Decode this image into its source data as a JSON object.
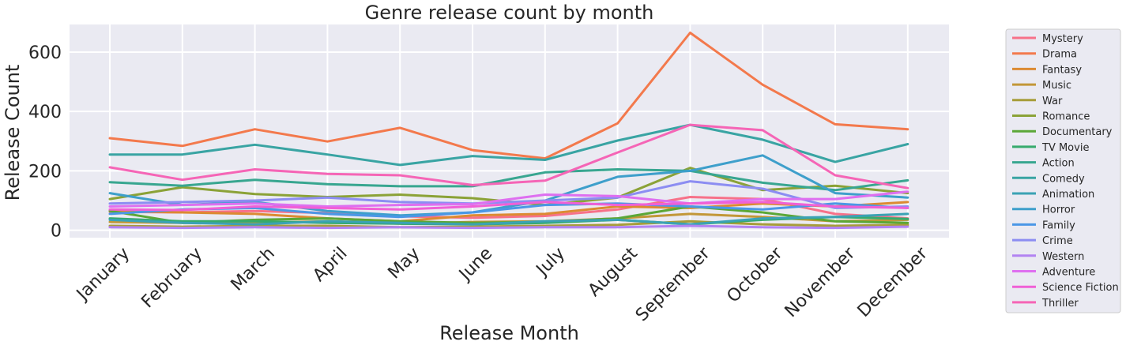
{
  "chart_data": {
    "type": "line",
    "title": "Genre release count by month",
    "xlabel": "Release Month",
    "ylabel": "Release Count",
    "categories": [
      "January",
      "February",
      "March",
      "April",
      "May",
      "June",
      "July",
      "August",
      "September",
      "October",
      "November",
      "December"
    ],
    "yticks": [
      0,
      200,
      400,
      600
    ],
    "ylim": [
      -25,
      693
    ],
    "grid": true,
    "legend_position": "right",
    "series": [
      {
        "name": "Mystery",
        "color": "#f77189",
        "values": [
          62,
          60,
          65,
          58,
          47,
          42,
          48,
          70,
          112,
          105,
          55,
          40
        ]
      },
      {
        "name": "Drama",
        "color": "#f3794c",
        "values": [
          310,
          284,
          340,
          299,
          345,
          270,
          242,
          360,
          665,
          490,
          357,
          340
        ]
      },
      {
        "name": "Fantasy",
        "color": "#dc8a32",
        "values": [
          65,
          60,
          55,
          40,
          30,
          50,
          55,
          80,
          75,
          90,
          80,
          95
        ]
      },
      {
        "name": "Music",
        "color": "#c29738",
        "values": [
          28,
          25,
          25,
          30,
          22,
          28,
          30,
          40,
          55,
          45,
          30,
          35
        ]
      },
      {
        "name": "War",
        "color": "#a79d3a",
        "values": [
          15,
          12,
          15,
          15,
          10,
          12,
          15,
          18,
          30,
          20,
          15,
          18
        ]
      },
      {
        "name": "Romance",
        "color": "#8ba237",
        "values": [
          105,
          145,
          122,
          112,
          120,
          108,
          85,
          110,
          210,
          135,
          150,
          125
        ]
      },
      {
        "name": "Documentary",
        "color": "#5ba737",
        "values": [
          65,
          25,
          35,
          40,
          30,
          25,
          28,
          40,
          80,
          60,
          30,
          25
        ]
      },
      {
        "name": "TV Movie",
        "color": "#36aa6d",
        "values": [
          40,
          30,
          30,
          25,
          22,
          20,
          25,
          35,
          20,
          35,
          45,
          38
        ]
      },
      {
        "name": "Action",
        "color": "#38a690",
        "values": [
          162,
          150,
          170,
          155,
          148,
          148,
          195,
          205,
          200,
          160,
          135,
          168
        ]
      },
      {
        "name": "Comedy",
        "color": "#39a4a3",
        "values": [
          255,
          255,
          288,
          255,
          220,
          250,
          237,
          302,
          355,
          305,
          230,
          290
        ]
      },
      {
        "name": "Animation",
        "color": "#3ba2b4",
        "values": [
          35,
          25,
          20,
          30,
          25,
          20,
          30,
          35,
          20,
          40,
          45,
          55
        ]
      },
      {
        "name": "Horror",
        "color": "#3e9fcb",
        "values": [
          125,
          85,
          95,
          65,
          50,
          60,
          100,
          180,
          200,
          252,
          125,
          110
        ]
      },
      {
        "name": "Family",
        "color": "#4b97e6",
        "values": [
          55,
          70,
          75,
          55,
          45,
          60,
          85,
          90,
          80,
          70,
          90,
          75
        ]
      },
      {
        "name": "Crime",
        "color": "#8c8df2",
        "values": [
          90,
          95,
          100,
          110,
          95,
          90,
          100,
          110,
          165,
          140,
          75,
          80
        ]
      },
      {
        "name": "Western",
        "color": "#b283f2",
        "values": [
          10,
          8,
          10,
          8,
          10,
          8,
          10,
          10,
          15,
          10,
          8,
          12
        ]
      },
      {
        "name": "Adventure",
        "color": "#de6ff0",
        "values": [
          80,
          85,
          90,
          80,
          85,
          88,
          120,
          115,
          90,
          105,
          105,
          130
        ]
      },
      {
        "name": "Science Fiction",
        "color": "#f060d6",
        "values": [
          70,
          68,
          80,
          75,
          70,
          80,
          95,
          85,
          90,
          95,
          80,
          75
        ]
      },
      {
        "name": "Thriller",
        "color": "#f565b6",
        "values": [
          212,
          170,
          205,
          190,
          185,
          152,
          167,
          262,
          355,
          337,
          185,
          142
        ]
      }
    ]
  }
}
